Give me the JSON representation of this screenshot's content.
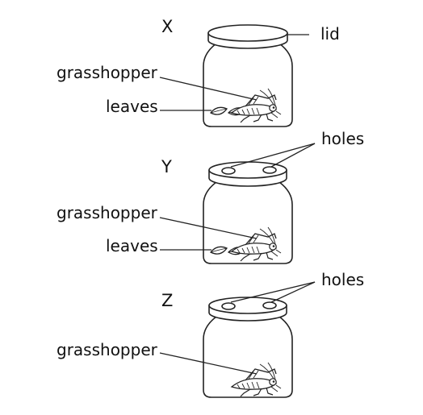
{
  "jars": [
    {
      "letter": "X",
      "labels": {
        "lid": "lid",
        "grasshopper": "grasshopper",
        "leaves": "leaves"
      },
      "has_holes": false,
      "has_leaves": true
    },
    {
      "letter": "Y",
      "labels": {
        "holes": "holes",
        "grasshopper": "grasshopper",
        "leaves": "leaves"
      },
      "has_holes": true,
      "has_leaves": true
    },
    {
      "letter": "Z",
      "labels": {
        "holes": "holes",
        "grasshopper": "grasshopper"
      },
      "has_holes": true,
      "has_leaves": false
    }
  ],
  "colors": {
    "line": "#222222",
    "text": "#111111",
    "background": "#ffffff"
  }
}
